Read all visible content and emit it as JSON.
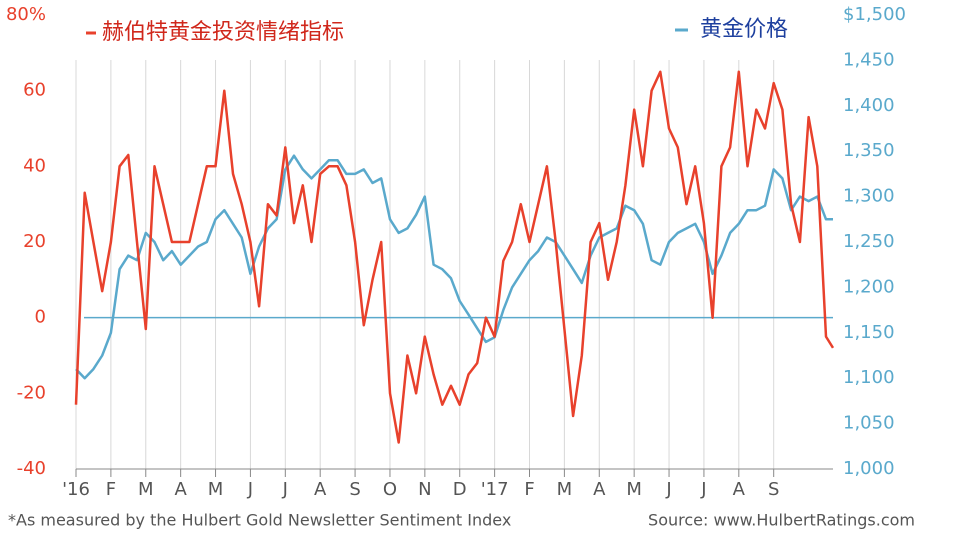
{
  "chart_data": {
    "type": "line",
    "legend_position": "top",
    "x": [
      0,
      0.25,
      0.5,
      0.75,
      1,
      1.25,
      1.5,
      1.75,
      2,
      2.25,
      2.5,
      2.75,
      3,
      3.25,
      3.5,
      3.75,
      4,
      4.25,
      4.5,
      4.75,
      5,
      5.25,
      5.5,
      5.75,
      6,
      6.25,
      6.5,
      6.75,
      7,
      7.25,
      7.5,
      7.75,
      8,
      8.25,
      8.5,
      8.75,
      9,
      9.25,
      9.5,
      9.75,
      10,
      10.25,
      10.5,
      10.75,
      11,
      11.25,
      11.5,
      11.75,
      12,
      12.25,
      12.5,
      12.75,
      13,
      13.25,
      13.5,
      13.75,
      14,
      14.25,
      14.5,
      14.75,
      15,
      15.25,
      15.5,
      15.75,
      16,
      16.25,
      16.5,
      16.75,
      17,
      17.25,
      17.5,
      17.75,
      18,
      18.25,
      18.5,
      18.75,
      19,
      19.25,
      19.5,
      19.75,
      20,
      20.25,
      20.5,
      20.75,
      21,
      21.25,
      21.5,
      21.7
    ],
    "series": [
      {
        "name": "赫伯特黄金投资情绪指标",
        "color": "#e8412c",
        "axis": "y",
        "values": [
          -23,
          33,
          20,
          7,
          20,
          40,
          43,
          20,
          -3,
          40,
          30,
          20,
          20,
          20,
          30,
          40,
          40,
          60,
          38,
          30,
          20,
          3,
          30,
          27,
          45,
          25,
          35,
          20,
          38,
          40,
          40,
          35,
          20,
          -2,
          10,
          20,
          -20,
          -33,
          -10,
          -20,
          -5,
          -15,
          -23,
          -18,
          -23,
          -15,
          -12,
          0,
          -5,
          15,
          20,
          30,
          20,
          30,
          40,
          20,
          -3,
          -26,
          -10,
          20,
          25,
          10,
          20,
          35,
          55,
          40,
          60,
          65,
          50,
          45,
          30,
          40,
          25,
          0,
          40,
          45,
          65,
          40,
          55,
          50,
          62,
          55,
          30,
          20,
          53,
          40,
          -5,
          -8
        ]
      },
      {
        "name": "黄金价格",
        "color": "#5aa9cc",
        "axis": "y2",
        "values": [
          1110,
          1100,
          1110,
          1125,
          1150,
          1220,
          1235,
          1230,
          1260,
          1250,
          1230,
          1240,
          1225,
          1235,
          1245,
          1250,
          1275,
          1285,
          1270,
          1255,
          1215,
          1245,
          1265,
          1275,
          1330,
          1345,
          1330,
          1320,
          1330,
          1340,
          1340,
          1325,
          1325,
          1330,
          1315,
          1320,
          1275,
          1260,
          1265,
          1280,
          1300,
          1225,
          1220,
          1210,
          1185,
          1170,
          1155,
          1140,
          1145,
          1175,
          1200,
          1215,
          1230,
          1240,
          1255,
          1250,
          1235,
          1220,
          1205,
          1235,
          1255,
          1260,
          1265,
          1290,
          1285,
          1270,
          1230,
          1225,
          1250,
          1260,
          1265,
          1270,
          1250,
          1215,
          1235,
          1260,
          1270,
          1285,
          1285,
          1290,
          1330,
          1320,
          1285,
          1300,
          1295,
          1300,
          1275,
          1275
        ]
      }
    ],
    "xlim": [
      0,
      21.7
    ],
    "xticks": [
      {
        "value": 0,
        "label": "'16"
      },
      {
        "value": 1,
        "label": "F"
      },
      {
        "value": 2,
        "label": "M"
      },
      {
        "value": 3,
        "label": "A"
      },
      {
        "value": 4,
        "label": "M"
      },
      {
        "value": 5,
        "label": "J"
      },
      {
        "value": 6,
        "label": "J"
      },
      {
        "value": 7,
        "label": "A"
      },
      {
        "value": 8,
        "label": "S"
      },
      {
        "value": 9,
        "label": "O"
      },
      {
        "value": 10,
        "label": "N"
      },
      {
        "value": 11,
        "label": "D"
      },
      {
        "value": 12,
        "label": "'17"
      },
      {
        "value": 13,
        "label": "F"
      },
      {
        "value": 14,
        "label": "M"
      },
      {
        "value": 15,
        "label": "A"
      },
      {
        "value": 16,
        "label": "M"
      },
      {
        "value": 17,
        "label": "J"
      },
      {
        "value": 18,
        "label": "J"
      },
      {
        "value": 19,
        "label": "A"
      },
      {
        "value": 20,
        "label": "S"
      }
    ],
    "ylim": [
      -40,
      80
    ],
    "yticks": [
      {
        "value": 80,
        "label": "80%"
      },
      60,
      40,
      20,
      0,
      -20,
      -40
    ],
    "y2lim": [
      1000,
      1500
    ],
    "y2ticks": [
      {
        "value": 1500,
        "label": "$1,500"
      },
      {
        "value": 1450,
        "label": "1,450"
      },
      {
        "value": 1400,
        "label": "1,400"
      },
      {
        "value": 1350,
        "label": "1,350"
      },
      {
        "value": 1300,
        "label": "1,300"
      },
      {
        "value": 1250,
        "label": "1,250"
      },
      {
        "value": 1200,
        "label": "1,200"
      },
      {
        "value": 1150,
        "label": "1,150"
      },
      {
        "value": 1100,
        "label": "1,100"
      },
      {
        "value": 1050,
        "label": "1,050"
      },
      {
        "value": 1000,
        "label": "1,000"
      }
    ],
    "grid": true,
    "footnote": "*As measured by the Hulbert Gold Newsletter Sentiment Index",
    "source": "Source: www.HulbertRatings.com"
  }
}
